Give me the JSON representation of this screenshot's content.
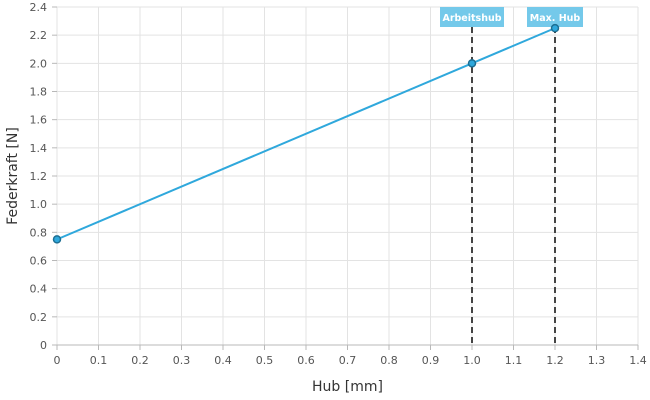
{
  "chart_data": {
    "type": "line",
    "xlabel": "Hub [mm]",
    "ylabel": "Federkraft [N]",
    "xlim": [
      0,
      1.4
    ],
    "ylim": [
      0,
      2.4
    ],
    "x_ticks": [
      "0",
      "0.1",
      "0.2",
      "0.3",
      "0.4",
      "0.5",
      "0.6",
      "0.7",
      "0.8",
      "0.9",
      "1.0",
      "1.1",
      "1.2",
      "1.3",
      "1.4"
    ],
    "y_ticks": [
      "0",
      "0.2",
      "0.4",
      "0.6",
      "0.8",
      "1.0",
      "1.2",
      "1.4",
      "1.6",
      "1.8",
      "2.0",
      "2.2",
      "2.4"
    ],
    "grid": true,
    "series": [
      {
        "color": "#2fa8dc",
        "x": [
          0,
          1.0,
          1.2
        ],
        "y": [
          0.75,
          2.0,
          2.25
        ]
      }
    ],
    "markers": [
      {
        "label": "Arbeitshub",
        "x": 1.0
      },
      {
        "label": "Max. Hub",
        "x": 1.2
      }
    ]
  }
}
